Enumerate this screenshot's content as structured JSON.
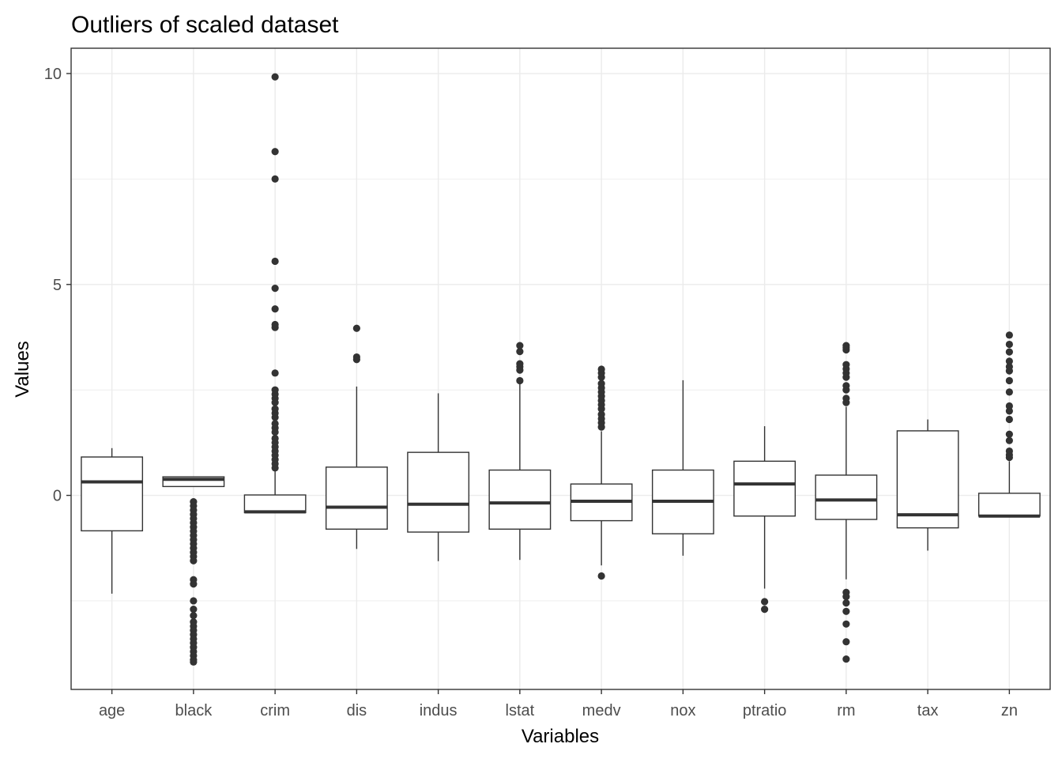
{
  "chart_data": {
    "type": "boxplot",
    "title": "Outliers of scaled dataset",
    "xlabel": "Variables",
    "ylabel": "Values",
    "ylim": [
      -4.6,
      10.6
    ],
    "y_ticks": [
      0,
      5,
      10
    ],
    "grid": true,
    "colors": {
      "box": "#333333",
      "grid": "#ebebeb",
      "panel_border": "#333333",
      "background": "#ffffff"
    },
    "categories": [
      "age",
      "black",
      "crim",
      "dis",
      "indus",
      "lstat",
      "medv",
      "nox",
      "ptratio",
      "rm",
      "tax",
      "zn"
    ],
    "boxes": [
      {
        "name": "age",
        "whisker_low": -2.33,
        "q1": -0.84,
        "median": 0.32,
        "q3": 0.91,
        "whisker_high": 1.12,
        "outliers": []
      },
      {
        "name": "black",
        "whisker_low": 0.2,
        "q1": 0.21,
        "median": 0.38,
        "q3": 0.44,
        "whisker_high": 0.44,
        "outliers": [
          -0.15,
          -0.25,
          -0.35,
          -0.45,
          -0.55,
          -0.65,
          -0.75,
          -0.85,
          -0.95,
          -1.05,
          -1.15,
          -1.25,
          -1.35,
          -1.45,
          -1.55,
          -2.0,
          -2.1,
          -2.5,
          -2.7,
          -2.85,
          -3.0,
          -3.1,
          -3.2,
          -3.3,
          -3.4,
          -3.5,
          -3.6,
          -3.7,
          -3.8,
          -3.9,
          -3.95
        ]
      },
      {
        "name": "crim",
        "whisker_low": -0.42,
        "q1": -0.41,
        "median": -0.39,
        "q3": 0.01,
        "whisker_high": 0.6,
        "outliers": [
          0.65,
          0.75,
          0.85,
          0.95,
          1.05,
          1.15,
          1.25,
          1.35,
          1.5,
          1.6,
          1.7,
          1.85,
          1.95,
          2.05,
          2.2,
          2.3,
          2.4,
          2.5,
          2.9,
          3.98,
          4.05,
          4.42,
          4.91,
          5.55,
          7.5,
          8.15,
          9.92
        ]
      },
      {
        "name": "dis",
        "whisker_low": -1.27,
        "q1": -0.8,
        "median": -0.28,
        "q3": 0.67,
        "whisker_high": 2.58,
        "outliers": [
          3.22,
          3.28,
          3.96
        ]
      },
      {
        "name": "indus",
        "whisker_low": -1.56,
        "q1": -0.87,
        "median": -0.21,
        "q3": 1.02,
        "whisker_high": 2.42,
        "outliers": []
      },
      {
        "name": "lstat",
        "whisker_low": -1.53,
        "q1": -0.8,
        "median": -0.18,
        "q3": 0.6,
        "whisker_high": 2.66,
        "outliers": [
          2.72,
          2.97,
          3.05,
          3.12,
          3.41,
          3.55
        ]
      },
      {
        "name": "medv",
        "whisker_low": -1.66,
        "q1": -0.6,
        "median": -0.14,
        "q3": 0.27,
        "whisker_high": 1.52,
        "outliers": [
          -1.91,
          1.62,
          1.72,
          1.82,
          1.92,
          2.05,
          2.15,
          2.25,
          2.35,
          2.45,
          2.55,
          2.65,
          2.8,
          2.9,
          2.99
        ]
      },
      {
        "name": "nox",
        "whisker_low": -1.43,
        "q1": -0.91,
        "median": -0.14,
        "q3": 0.6,
        "whisker_high": 2.73,
        "outliers": []
      },
      {
        "name": "ptratio",
        "whisker_low": -2.21,
        "q1": -0.49,
        "median": 0.27,
        "q3": 0.81,
        "whisker_high": 1.64,
        "outliers": [
          -2.52,
          -2.7
        ]
      },
      {
        "name": "rm",
        "whisker_low": -1.99,
        "q1": -0.57,
        "median": -0.11,
        "q3": 0.48,
        "whisker_high": 2.1,
        "outliers": [
          -2.3,
          -2.4,
          -2.55,
          -2.75,
          -3.05,
          -3.47,
          -3.88,
          2.2,
          2.3,
          2.5,
          2.6,
          2.8,
          2.9,
          3.0,
          3.1,
          3.45,
          3.5,
          3.55
        ]
      },
      {
        "name": "tax",
        "whisker_low": -1.31,
        "q1": -0.77,
        "median": -0.46,
        "q3": 1.53,
        "whisker_high": 1.8,
        "outliers": []
      },
      {
        "name": "zn",
        "whisker_low": -0.49,
        "q1": -0.49,
        "median": -0.49,
        "q3": 0.05,
        "whisker_high": 0.81,
        "outliers": [
          0.9,
          0.96,
          1.05,
          1.3,
          1.45,
          1.8,
          2.0,
          2.12,
          2.45,
          2.72,
          2.95,
          3.05,
          3.18,
          3.4,
          3.58,
          3.8
        ]
      }
    ]
  }
}
